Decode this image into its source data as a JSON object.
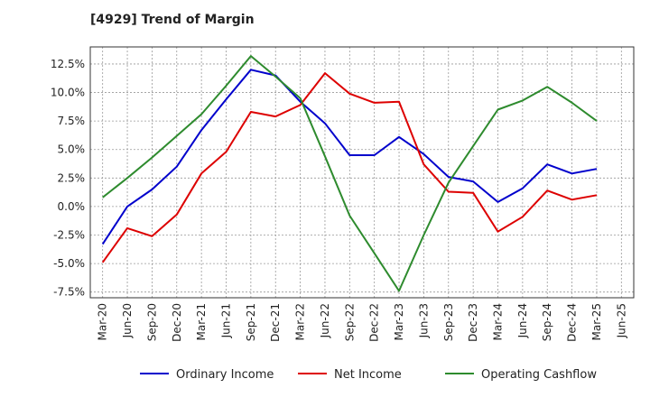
{
  "chart_data": {
    "type": "line",
    "title": "[4929]  Trend of Margin",
    "xlabel": "",
    "ylabel": "",
    "ylim": [
      -8.0,
      14.0
    ],
    "y_ticks": [
      "12.5%",
      "10.0%",
      "7.5%",
      "5.0%",
      "2.5%",
      "0.0%",
      "-2.5%",
      "-5.0%",
      "-7.5%"
    ],
    "y_tick_values": [
      12.5,
      10.0,
      7.5,
      5.0,
      2.5,
      0.0,
      -2.5,
      -5.0,
      -7.5
    ],
    "categories": [
      "Mar-20",
      "Jun-20",
      "Sep-20",
      "Dec-20",
      "Mar-21",
      "Jun-21",
      "Sep-21",
      "Dec-21",
      "Mar-22",
      "Jun-22",
      "Sep-22",
      "Dec-22",
      "Mar-23",
      "Jun-23",
      "Sep-23",
      "Dec-23",
      "Mar-24",
      "Jun-24",
      "Sep-24",
      "Dec-24",
      "Mar-25",
      "Jun-25"
    ],
    "grid": true,
    "legend_position": "bottom",
    "series": [
      {
        "name": "Ordinary Income",
        "color": "#0000cc",
        "values": [
          -3.3,
          0.0,
          1.5,
          3.5,
          6.7,
          9.4,
          12.0,
          11.5,
          9.2,
          7.3,
          4.5,
          4.5,
          6.1,
          4.6,
          2.6,
          2.2,
          0.4,
          1.6,
          3.7,
          2.9,
          3.3,
          null
        ]
      },
      {
        "name": "Net Income",
        "color": "#dd0000",
        "values": [
          -4.9,
          -1.9,
          -2.6,
          -0.7,
          2.9,
          4.8,
          8.3,
          7.9,
          8.9,
          11.7,
          9.9,
          9.1,
          9.2,
          3.7,
          1.3,
          1.2,
          -2.2,
          -0.9,
          1.4,
          0.6,
          1.0,
          null
        ]
      },
      {
        "name": "Operating Cashflow",
        "color": "#2e8b2e",
        "values": [
          0.8,
          2.5,
          4.3,
          6.2,
          8.1,
          10.6,
          13.2,
          11.4,
          9.5,
          4.4,
          -0.8,
          -4.1,
          -7.4,
          -2.5,
          2.1,
          5.3,
          8.5,
          9.3,
          10.5,
          9.1,
          7.5,
          null
        ]
      }
    ]
  }
}
